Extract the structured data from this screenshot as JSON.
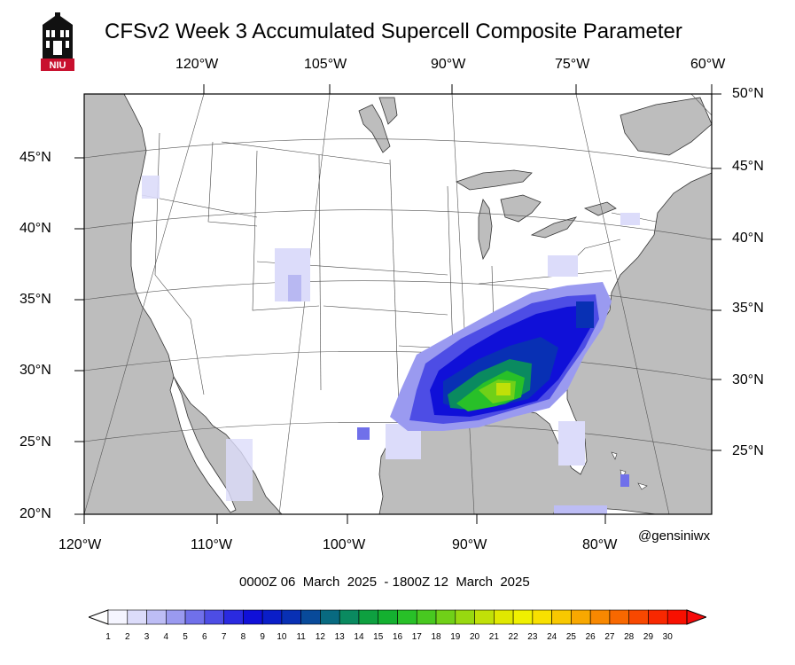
{
  "header": {
    "title": "CFSv2 Week 3 Accumulated Supercell Composite Parameter",
    "logo_text": "NIU",
    "logo_icon": "niu-tower-logo"
  },
  "axes": {
    "top_lon": [
      "120°W",
      "105°W",
      "90°W",
      "75°W",
      "60°W"
    ],
    "bottom_lon": [
      "120°W",
      "110°W",
      "100°W",
      "90°W",
      "80°W"
    ],
    "left_lat": [
      "45°N",
      "40°N",
      "35°N",
      "30°N",
      "25°N",
      "20°N"
    ],
    "right_lat": [
      "50°N",
      "45°N",
      "40°N",
      "35°N",
      "30°N",
      "25°N"
    ]
  },
  "credit": "@gensiniwx",
  "date_range": "0000Z 06  March  2025  - 1800Z 12  March  2025",
  "colorbar": {
    "ticks": [
      "1",
      "2",
      "3",
      "4",
      "5",
      "6",
      "7",
      "8",
      "9",
      "10",
      "11",
      "12",
      "13",
      "14",
      "15",
      "16",
      "17",
      "18",
      "19",
      "20",
      "21",
      "22",
      "23",
      "24",
      "25",
      "26",
      "27",
      "28",
      "29",
      "30"
    ],
    "colors": [
      "#f5f5ff",
      "#dcdcfa",
      "#bdbdf5",
      "#9a9af0",
      "#7070ea",
      "#4d4de5",
      "#2a2ae0",
      "#1010d8",
      "#0a1ec8",
      "#0830b4",
      "#084a9a",
      "#086a80",
      "#0a8a60",
      "#0ea040",
      "#14b030",
      "#28c028",
      "#48c820",
      "#70d018",
      "#98d810",
      "#c0e008",
      "#e0e800",
      "#f0f000",
      "#f8e000",
      "#f8c800",
      "#f8a800",
      "#f88800",
      "#f86800",
      "#f84800",
      "#f82800",
      "#f81000"
    ],
    "under_color": "#ffffff",
    "over_color": "#f80a0a"
  },
  "map": {
    "ocean_color": "#bdbdbd",
    "land_color": "#ffffff"
  }
}
